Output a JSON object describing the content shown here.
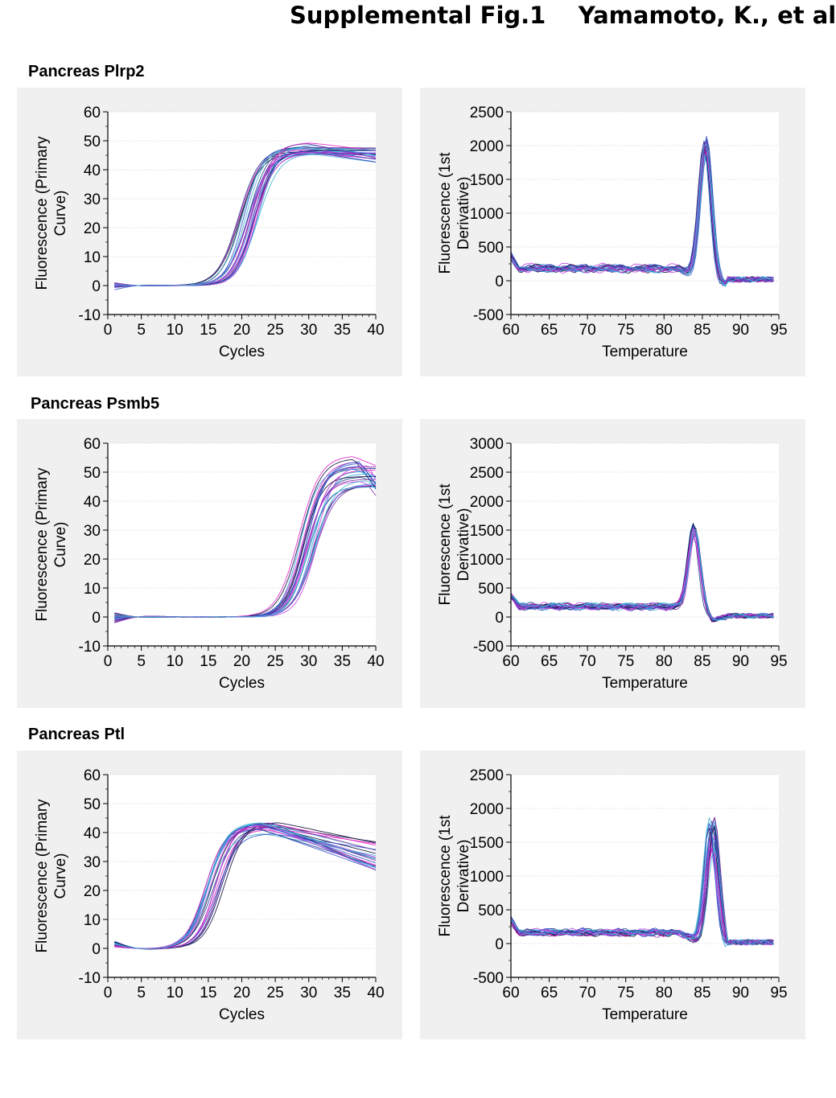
{
  "figure": {
    "title": "Supplemental Fig.1    Yamamoto, K., et al"
  },
  "sections": [
    {
      "label": "Pancreas Plrp2"
    },
    {
      "label": "Pancreas Psmb5"
    },
    {
      "label": "Pancreas Ptl"
    }
  ],
  "chart_data": [
    {
      "id": "plrp2-amplification",
      "type": "line",
      "gene": "Plrp2",
      "kind": "amplification",
      "xlabel": "Cycles",
      "ylabel": "Fluorescence (Primary Curve)",
      "xlim": [
        0,
        40
      ],
      "ylim": [
        -10,
        60
      ],
      "xticks": [
        0,
        5,
        10,
        15,
        20,
        25,
        30,
        35,
        40
      ],
      "yticks": [
        -10,
        0,
        10,
        20,
        30,
        40,
        50,
        60
      ],
      "grid": "horizontal",
      "legend": "none",
      "series_generation": {
        "n": 24,
        "threshold_cycle_range": [
          19.5,
          22.5
        ],
        "plateau_range": [
          45,
          49.5
        ],
        "end_value_range": [
          42,
          48.5
        ],
        "early_cycle_value_range": [
          -1.5,
          1
        ]
      },
      "colors": [
        "#1f3c88",
        "#0b0b3b",
        "#e020c8",
        "#2aa0e0",
        "#7b2fa0",
        "#3050c8",
        "#c040e0",
        "#40b0d0"
      ]
    },
    {
      "id": "plrp2-melt",
      "type": "line",
      "gene": "Plrp2",
      "kind": "melt",
      "xlabel": "Temperature",
      "ylabel": "Fluorescence (1st Derivative)",
      "xlim": [
        60,
        95
      ],
      "ylim": [
        -500,
        2500
      ],
      "xticks": [
        60,
        65,
        70,
        75,
        80,
        85,
        90,
        95
      ],
      "yticks": [
        -500,
        0,
        500,
        1000,
        1500,
        2000,
        2500
      ],
      "grid": "horizontal",
      "legend": "none",
      "series_generation": {
        "n": 24,
        "peak_temperature_range": [
          85.2,
          85.6
        ],
        "peak_height_range": [
          1900,
          2200
        ],
        "baseline_range": [
          150,
          230
        ],
        "x_range": [
          60,
          94.5
        ]
      },
      "colors": [
        "#1f3c88",
        "#0b0b3b",
        "#e020c8",
        "#2aa0e0",
        "#7b2fa0",
        "#3050c8",
        "#c040e0",
        "#40b0d0"
      ]
    },
    {
      "id": "psmb5-amplification",
      "type": "line",
      "gene": "Psmb5",
      "kind": "amplification",
      "xlabel": "Cycles",
      "ylabel": "Fluorescence (Primary Curve)",
      "xlim": [
        0,
        40
      ],
      "ylim": [
        -10,
        60
      ],
      "xticks": [
        0,
        5,
        10,
        15,
        20,
        25,
        30,
        35,
        40
      ],
      "yticks": [
        -10,
        0,
        10,
        20,
        30,
        40,
        50,
        60
      ],
      "grid": "horizontal",
      "legend": "none",
      "series_generation": {
        "n": 24,
        "threshold_cycle_range": [
          28.5,
          31
        ],
        "plateau_range": [
          44,
          56
        ],
        "end_value_range": [
          41,
          54
        ],
        "early_cycle_value_range": [
          -2,
          1.5
        ]
      },
      "colors": [
        "#1f3c88",
        "#0b0b3b",
        "#e020c8",
        "#2aa0e0",
        "#7b2fa0",
        "#3050c8",
        "#c040e0",
        "#40b0d0"
      ]
    },
    {
      "id": "psmb5-melt",
      "type": "line",
      "gene": "Psmb5",
      "kind": "melt",
      "xlabel": "Temperature",
      "ylabel": "Fluorescence (1st Derivative)",
      "xlim": [
        60,
        95
      ],
      "ylim": [
        -500,
        3000
      ],
      "xticks": [
        60,
        65,
        70,
        75,
        80,
        85,
        90,
        95
      ],
      "yticks": [
        -500,
        0,
        500,
        1000,
        1500,
        2000,
        2500,
        3000
      ],
      "grid": "horizontal",
      "legend": "none",
      "series_generation": {
        "n": 24,
        "peak_temperature_range": [
          83.8,
          84.1
        ],
        "peak_height_range": [
          1350,
          1580
        ],
        "baseline_range": [
          150,
          210
        ],
        "x_range": [
          60,
          94.5
        ]
      },
      "colors": [
        "#1f3c88",
        "#0b0b3b",
        "#e020c8",
        "#2aa0e0",
        "#7b2fa0",
        "#3050c8",
        "#c040e0",
        "#40b0d0"
      ]
    },
    {
      "id": "ptl-amplification",
      "type": "line",
      "gene": "Ptl",
      "kind": "amplification",
      "xlabel": "Cycles",
      "ylabel": "Fluorescence (Primary Curve)",
      "xlim": [
        0,
        40
      ],
      "ylim": [
        -10,
        60
      ],
      "xticks": [
        0,
        5,
        10,
        15,
        20,
        25,
        30,
        35,
        40
      ],
      "yticks": [
        -10,
        0,
        10,
        20,
        30,
        40,
        50,
        60
      ],
      "grid": "horizontal",
      "legend": "none",
      "series_generation": {
        "n": 24,
        "threshold_cycle_range": [
          14.5,
          17.5
        ],
        "plateau_range": [
          39.5,
          44
        ],
        "end_value_range": [
          27,
          37
        ],
        "early_cycle_value_range": [
          0.5,
          2.5
        ]
      },
      "colors": [
        "#1f3c88",
        "#0b0b3b",
        "#e020c8",
        "#2aa0e0",
        "#7b2fa0",
        "#3050c8",
        "#c040e0",
        "#40b0d0"
      ]
    },
    {
      "id": "ptl-melt",
      "type": "line",
      "gene": "Ptl",
      "kind": "melt",
      "xlabel": "Temperature",
      "ylabel": "Fluorescence (1st Derivative)",
      "xlim": [
        60,
        95
      ],
      "ylim": [
        -500,
        2500
      ],
      "xticks": [
        60,
        65,
        70,
        75,
        80,
        85,
        90,
        95
      ],
      "yticks": [
        -500,
        0,
        500,
        1000,
        1500,
        2000,
        2500
      ],
      "grid": "horizontal",
      "legend": "none",
      "series_generation": {
        "n": 24,
        "peak_temperature_range": [
          85.8,
          86.6
        ],
        "peak_height_range": [
          1400,
          1900
        ],
        "baseline_range": [
          140,
          200
        ],
        "x_range": [
          60,
          94.5
        ]
      },
      "colors": [
        "#1f3c88",
        "#0b0b3b",
        "#e020c8",
        "#2aa0e0",
        "#7b2fa0",
        "#3050c8",
        "#c040e0",
        "#40b0d0"
      ]
    }
  ]
}
